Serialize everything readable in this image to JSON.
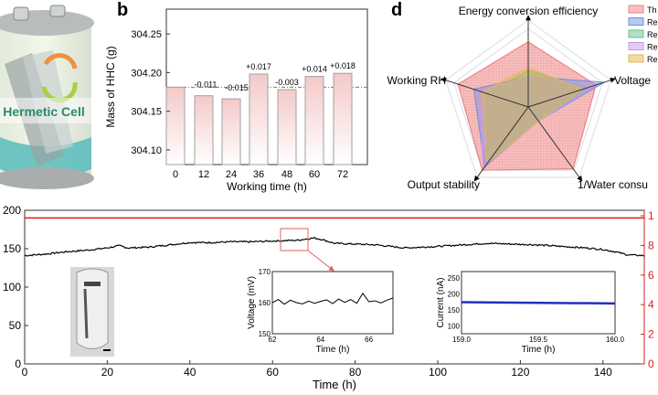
{
  "panel_a": {
    "label": "Hermetic Cell"
  },
  "chart_data": [
    {
      "panel": "b",
      "type": "bar",
      "xlabel": "Working time (h)",
      "ylabel": "Mass of HHC (g)",
      "categories": [
        "0",
        "12",
        "24",
        "36",
        "48",
        "60",
        "72"
      ],
      "values": [
        304.181,
        304.17,
        304.166,
        304.198,
        304.178,
        304.195,
        304.199
      ],
      "data_labels": [
        "",
        "-0.011",
        "-0.015",
        "+0.017",
        "-0.003",
        "+0.014",
        "+0.018"
      ],
      "yticks": [
        "304.10",
        "304.15",
        "304.20",
        "304.25"
      ],
      "ylim": [
        304.081,
        304.282
      ],
      "reference_line": 304.181,
      "colors": {
        "bar_top": "#f4c9c9",
        "bar_bottom": "#ffffff",
        "edge": "#a0a0a0"
      }
    },
    {
      "panel": "d",
      "type": "radar",
      "axes": [
        "Energy conversion efficiency",
        "Voltage",
        "1/Water consu",
        "Output stability",
        "Working RH"
      ],
      "legend": [
        "Th",
        "Re",
        "Re",
        "Re",
        "Re"
      ],
      "legend_position": "top-right",
      "series": [
        {
          "legend_label": "Th",
          "color": "#f08080",
          "values": [
            0.75,
            0.82,
            0.88,
            0.9,
            0.85
          ]
        },
        {
          "legend_label": "Re",
          "color": "#6f8fe0",
          "values": [
            0.35,
            0.92,
            0.2,
            0.85,
            0.66
          ]
        },
        {
          "legend_label": "Re",
          "color": "#66c28a",
          "values": [
            0.42,
            0.72,
            0.2,
            0.8,
            0.5
          ]
        },
        {
          "legend_label": "Re",
          "color": "#c39be6",
          "values": [
            0.35,
            0.85,
            0.2,
            0.88,
            0.6
          ]
        },
        {
          "legend_label": "Re",
          "color": "#e2b84a",
          "values": [
            0.45,
            0.66,
            0.2,
            0.8,
            0.56
          ]
        }
      ]
    },
    {
      "panel": "e",
      "type": "line",
      "xlabel": "Time (h)",
      "xlim": [
        0,
        150
      ],
      "xticks": [
        "0",
        "20",
        "40",
        "60",
        "80",
        "100",
        "120",
        "140"
      ],
      "ylim": [
        0,
        200
      ],
      "yticks": [
        "0",
        "50",
        "100",
        "150",
        "200"
      ],
      "right_yticks": [
        "0",
        "2",
        "4",
        "6",
        "8",
        "1"
      ],
      "series": [
        {
          "color": "#000000",
          "x": [
            0,
            5,
            10,
            15,
            20,
            23,
            25,
            30,
            35,
            40,
            45,
            50,
            55,
            60,
            66,
            70,
            72,
            75,
            80,
            85,
            92,
            100,
            106,
            112,
            118,
            124,
            130,
            136,
            140,
            143,
            146,
            150
          ],
          "y": [
            141,
            143,
            146,
            148,
            151,
            154,
            151,
            152,
            155,
            158,
            158,
            159,
            159,
            160,
            161,
            164,
            162,
            157,
            156,
            155,
            151,
            153,
            155,
            157,
            156,
            155,
            153,
            151,
            149,
            146,
            142,
            141
          ]
        },
        {
          "color": "#d62020",
          "axis": "right",
          "x": [
            0,
            150
          ],
          "y": [
            190,
            190
          ]
        }
      ]
    },
    {
      "panel": "e-inset-voltage",
      "type": "line",
      "xlabel": "Time (h)",
      "ylabel": "Voltage (mV)",
      "xlim": [
        62,
        67
      ],
      "xticks": [
        "62",
        "64",
        "66"
      ],
      "ylim": [
        150,
        170
      ],
      "yticks": [
        "150",
        "160",
        "170"
      ],
      "series": [
        {
          "color": "#000000",
          "x": [
            62,
            62.25,
            62.5,
            62.75,
            63,
            63.25,
            63.5,
            63.75,
            64,
            64.25,
            64.5,
            64.75,
            65,
            65.25,
            65.5,
            65.75,
            66,
            66.25,
            66.5,
            66.75,
            67
          ],
          "y": [
            160,
            161,
            159.5,
            160.8,
            160,
            159.6,
            160.5,
            159.8,
            160.4,
            160.9,
            159.7,
            161.2,
            160.1,
            161,
            159.8,
            163,
            160.3,
            160.6,
            159.9,
            160.8,
            161.5
          ]
        }
      ]
    },
    {
      "panel": "e-inset-current",
      "type": "line",
      "xlabel": "Time (h)",
      "ylabel": "Current (nA)",
      "xlim": [
        159.0,
        160.0
      ],
      "xticks": [
        "159.0",
        "159.5",
        "160.0"
      ],
      "ylim": [
        75,
        270
      ],
      "yticks": [
        "100",
        "150",
        "200",
        "250"
      ],
      "series": [
        {
          "color": "#2030c0",
          "x": [
            159.0,
            160.0
          ],
          "y": [
            174,
            170
          ]
        }
      ]
    }
  ]
}
